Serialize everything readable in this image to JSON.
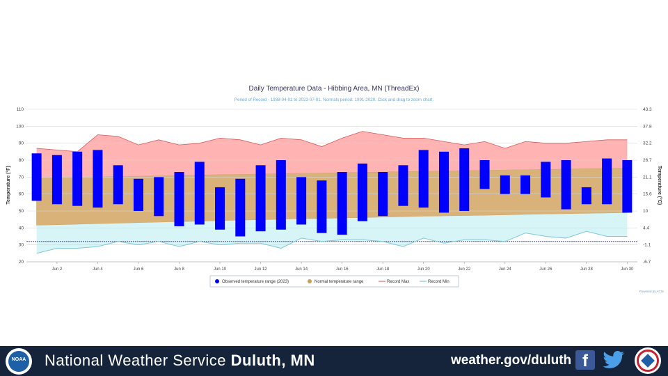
{
  "footer": {
    "logo_text": "NOAA",
    "org_prefix": "National Weather Service",
    "org_office": "Duluth, MN",
    "url": "weather.gov/duluth",
    "facebook_label": "f"
  },
  "chart_data": {
    "type": "bar",
    "title": "Daily Temperature Data - Hibbing Area, MN (ThreadEx)",
    "subtitle": "Period of Record - 1938-04-01 to 2023-07-01. Normals period: 1991-2020. Click and drag to zoom chart.",
    "ylabel": "Temperature (°F)",
    "y2label": "Temperature (°C)",
    "ylim": [
      20,
      110
    ],
    "yticks": [
      20,
      30,
      40,
      50,
      60,
      70,
      80,
      90,
      100,
      110
    ],
    "y2ticks": [
      "-6.7",
      "-1.1",
      "4.4",
      "10",
      "15.6",
      "21.1",
      "26.7",
      "32.2",
      "37.8",
      "43.3"
    ],
    "xlabels": [
      "Jun 2",
      "Jun 4",
      "Jun 6",
      "Jun 8",
      "Jun 10",
      "Jun 12",
      "Jun 14",
      "Jun 16",
      "Jun 18",
      "Jun 20",
      "Jun 22",
      "Jun 24",
      "Jun 26",
      "Jun 28",
      "Jun 30"
    ],
    "grid": true,
    "legend_position": "bottom",
    "credit": "Powered by ACIS",
    "days": [
      1,
      2,
      3,
      4,
      5,
      6,
      7,
      8,
      9,
      10,
      11,
      12,
      13,
      14,
      15,
      16,
      17,
      18,
      19,
      20,
      21,
      22,
      23,
      24,
      25,
      26,
      27,
      28,
      29,
      30
    ],
    "series": [
      {
        "name": "Observed temperature range (2023)",
        "color": "#0000ff",
        "low": [
          56,
          54,
          53,
          52,
          54,
          50,
          47,
          41,
          42,
          39,
          35,
          38,
          39,
          42,
          37,
          36,
          44,
          47,
          53,
          52,
          49,
          50,
          63,
          60,
          60,
          58,
          51,
          54,
          54,
          49
        ],
        "high": [
          84,
          83,
          85,
          86,
          77,
          69,
          70,
          73,
          79,
          64,
          69,
          77,
          80,
          70,
          68,
          73,
          78,
          73,
          77,
          86,
          85,
          87,
          80,
          71,
          71,
          79,
          80,
          64,
          81,
          80
        ]
      },
      {
        "name": "Normal temperature range",
        "color": "#c8a05a",
        "low": [
          41.5,
          41.8,
          42.1,
          42.4,
          42.7,
          43,
          43.3,
          43.6,
          43.9,
          44.2,
          44.5,
          44.7,
          45,
          45.3,
          45.5,
          45.8,
          46,
          46.3,
          46.5,
          46.8,
          47,
          47.2,
          47.4,
          47.6,
          47.9,
          48.1,
          48.3,
          48.5,
          48.7,
          48.9
        ],
        "high": [
          69.5,
          69.7,
          70,
          70.2,
          70.4,
          70.6,
          70.8,
          71,
          71.3,
          71.5,
          71.7,
          71.9,
          72.1,
          72.3,
          72.5,
          72.7,
          72.9,
          73.1,
          73.3,
          73.5,
          73.7,
          73.9,
          74.1,
          74.3,
          74.4,
          74.6,
          74.8,
          75,
          75.2,
          75.4
        ]
      },
      {
        "name": "Record Max",
        "color": "#f08080",
        "values": [
          87,
          86,
          85,
          95,
          94,
          89,
          92,
          89,
          90,
          93,
          92,
          89,
          93,
          92,
          88,
          93,
          97,
          95,
          93,
          93,
          91,
          89,
          91,
          87,
          91,
          90,
          90,
          91,
          92,
          92
        ]
      },
      {
        "name": "Record Min",
        "color": "#7ec8d8",
        "values": [
          25,
          28,
          28,
          29,
          32,
          30,
          32,
          29,
          32,
          30,
          31,
          31,
          28,
          34,
          32,
          33,
          33,
          32,
          29,
          34,
          31,
          33,
          33,
          32,
          37,
          35,
          34,
          38,
          35,
          35
        ]
      }
    ],
    "reference_line": 32
  }
}
